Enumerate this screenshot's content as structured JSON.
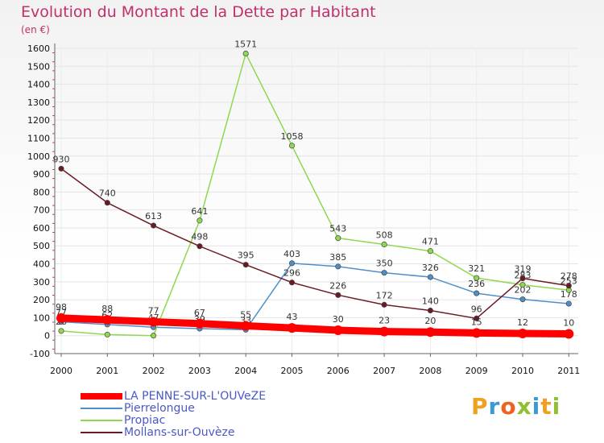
{
  "chart_data": {
    "type": "line",
    "title": "Evolution du Montant de la Dette par Habitant",
    "subtitle": "(en €)",
    "xlabel": "",
    "ylabel": "",
    "x": [
      "2000",
      "2001",
      "2002",
      "2003",
      "2004",
      "2005",
      "2006",
      "2007",
      "2008",
      "2009",
      "2010",
      "2011"
    ],
    "ylim": [
      -100,
      1600
    ],
    "yticks": [
      -100,
      0,
      100,
      200,
      300,
      400,
      500,
      600,
      700,
      800,
      900,
      1000,
      1100,
      1200,
      1300,
      1400,
      1500,
      1600
    ],
    "grid": true,
    "legend_position": "bottom-left",
    "series": [
      {
        "name": "LA PENNE-SUR-L'OUVeZE",
        "color": "#ff0000",
        "emphasis": true,
        "values": [
          98,
          88,
          77,
          67,
          55,
          43,
          30,
          23,
          20,
          15,
          12,
          10
        ],
        "labels": [
          "98",
          "88",
          "77",
          "67",
          "55",
          "43",
          "30",
          "23",
          "20",
          "15",
          "12",
          "10"
        ]
      },
      {
        "name": "Pierrelongue",
        "color": "#4f8fc8",
        "values": [
          77,
          62,
          47,
          39,
          33,
          403,
          385,
          350,
          326,
          236,
          202,
          178
        ],
        "labels": [
          "77",
          "62",
          "47",
          "39",
          "33",
          "403",
          "385",
          "350",
          "326",
          "236",
          "202",
          "178"
        ]
      },
      {
        "name": "Propiac",
        "color": "#8fd84f",
        "values": [
          26,
          6,
          0,
          641,
          1571,
          1058,
          543,
          508,
          471,
          321,
          283,
          253
        ],
        "labels": [
          "26",
          "",
          "",
          "641",
          "1571",
          "1058",
          "543",
          "508",
          "471",
          "321",
          "283",
          "253"
        ]
      },
      {
        "name": "Mollans-sur-Ouvèze",
        "color": "#6b1a25",
        "values": [
          930,
          740,
          613,
          498,
          395,
          296,
          226,
          172,
          140,
          96,
          319,
          278
        ],
        "labels": [
          "930",
          "740",
          "613",
          "498",
          "395",
          "296",
          "226",
          "172",
          "140",
          "96",
          "319",
          "278"
        ]
      }
    ]
  },
  "logo": {
    "letters": [
      "P",
      "r",
      "o",
      "x",
      "i",
      "t",
      "i"
    ],
    "colors": [
      "#f0a020",
      "#3a9ad8",
      "#f06020",
      "#90c030",
      "#3a9ad8",
      "#f0a020",
      "#90c030"
    ]
  }
}
